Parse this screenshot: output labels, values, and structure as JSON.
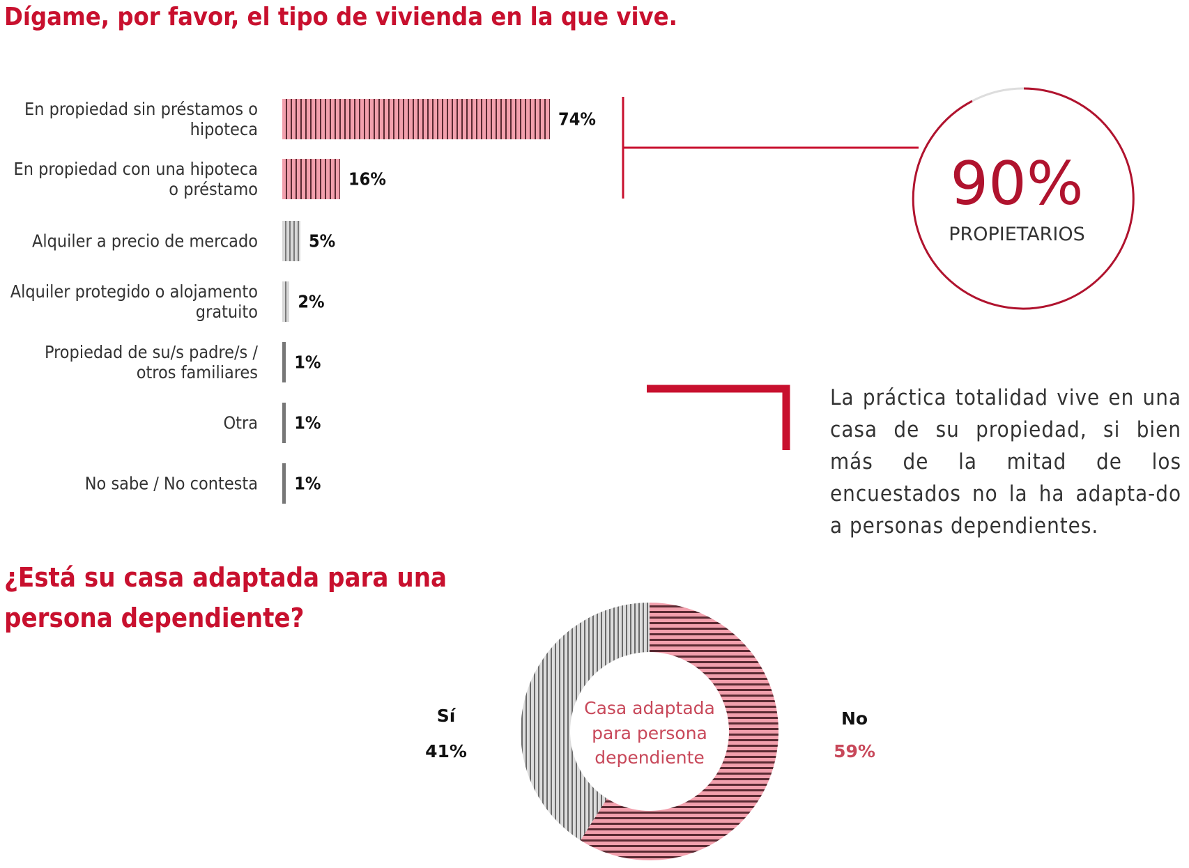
{
  "chart_data": [
    {
      "type": "bar",
      "title": "Dígame, por favor, el tipo de vivienda en la que vive.",
      "categories": [
        "En propiedad sin préstamos o hipoteca",
        "En propiedad con una hipoteca o préstamo",
        "Alquiler a precio de mercado",
        "Alquiler protegido o alojamento gratuito",
        "Propiedad de su/s padre/s / otros familiares",
        "Otra",
        "No sabe / No contesta"
      ],
      "values": [
        74,
        16,
        5,
        2,
        1,
        1,
        1
      ],
      "value_labels": [
        "74%",
        "16%",
        "5%",
        "2%",
        "1%",
        "1%",
        "1%"
      ],
      "orientation": "horizontal",
      "colors": [
        "#f2a0ad",
        "#f2a0ad",
        "#d8d8d8",
        "#d8d8d8",
        "#777777",
        "#777777",
        "#777777"
      ],
      "callout": {
        "value": "90%",
        "label": "PROPIETARIOS"
      }
    },
    {
      "type": "pie",
      "title": "¿Está su casa adaptada para una persona dependiente?",
      "center_label": "Casa adaptada para persona dependiente",
      "slices": [
        {
          "name": "No",
          "value": 59,
          "label": "59%",
          "color": "#f2a0ad"
        },
        {
          "name": "Sí",
          "value": 41,
          "label": "41%",
          "color": "#d8d8d8"
        }
      ]
    }
  ],
  "note": "La práctica totalidad vive en una casa de su propiedad, si bien más de la mitad de los encuestados no la ha adapta-do a personas dependientes.",
  "colors": {
    "accent": "#c8102e"
  }
}
